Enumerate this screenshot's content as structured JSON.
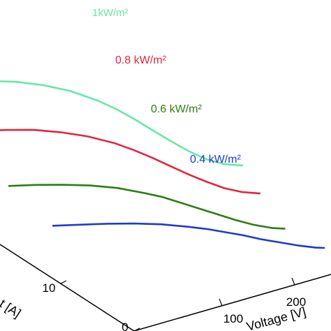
{
  "chart_data": {
    "type": "line",
    "projection": "3d-waterfall",
    "xlabel": "Voltage [V]",
    "ylabel_visible_fragment": "t [A]",
    "x_ticks": [
      "100",
      "200"
    ],
    "y_ticks": [
      "0",
      "10"
    ],
    "grid": false,
    "series": [
      {
        "name": "1kW/m²",
        "color": "#66e8a8",
        "x": [
          0,
          30,
          60,
          90,
          120,
          150,
          170,
          190,
          210,
          230,
          250,
          270,
          290,
          310
        ],
        "y": [
          11.8,
          11.7,
          11.4,
          10.8,
          9.9,
          8.6,
          7.5,
          6.2,
          4.8,
          3.4,
          2.1,
          1.0,
          0.3,
          0.0
        ]
      },
      {
        "name": "0.8 kW/m²",
        "color": "#e0283c",
        "x": [
          0,
          30,
          60,
          90,
          120,
          150,
          170,
          190,
          210,
          230,
          250,
          270,
          290,
          310
        ],
        "y": [
          9.4,
          9.3,
          9.1,
          8.6,
          7.9,
          6.9,
          6.0,
          5.0,
          3.9,
          2.8,
          1.8,
          0.9,
          0.3,
          0.0
        ]
      },
      {
        "name": "0.6 kW/m²",
        "color": "#2e7d12",
        "x": [
          0,
          30,
          60,
          90,
          120,
          150,
          170,
          190,
          210,
          230,
          250,
          270,
          290,
          305
        ],
        "y": [
          7.1,
          7.0,
          6.8,
          6.5,
          6.0,
          5.2,
          4.6,
          3.8,
          3.0,
          2.2,
          1.4,
          0.7,
          0.2,
          0.0
        ]
      },
      {
        "name": "0.4 kW/m²",
        "color": "#1e3cc8",
        "x": [
          0,
          30,
          60,
          90,
          120,
          150,
          170,
          190,
          210,
          230,
          250,
          270,
          290,
          300
        ],
        "y": [
          4.7,
          4.6,
          4.5,
          4.3,
          4.0,
          3.5,
          3.1,
          2.6,
          2.1,
          1.5,
          1.0,
          0.5,
          0.1,
          0.0
        ]
      }
    ]
  }
}
